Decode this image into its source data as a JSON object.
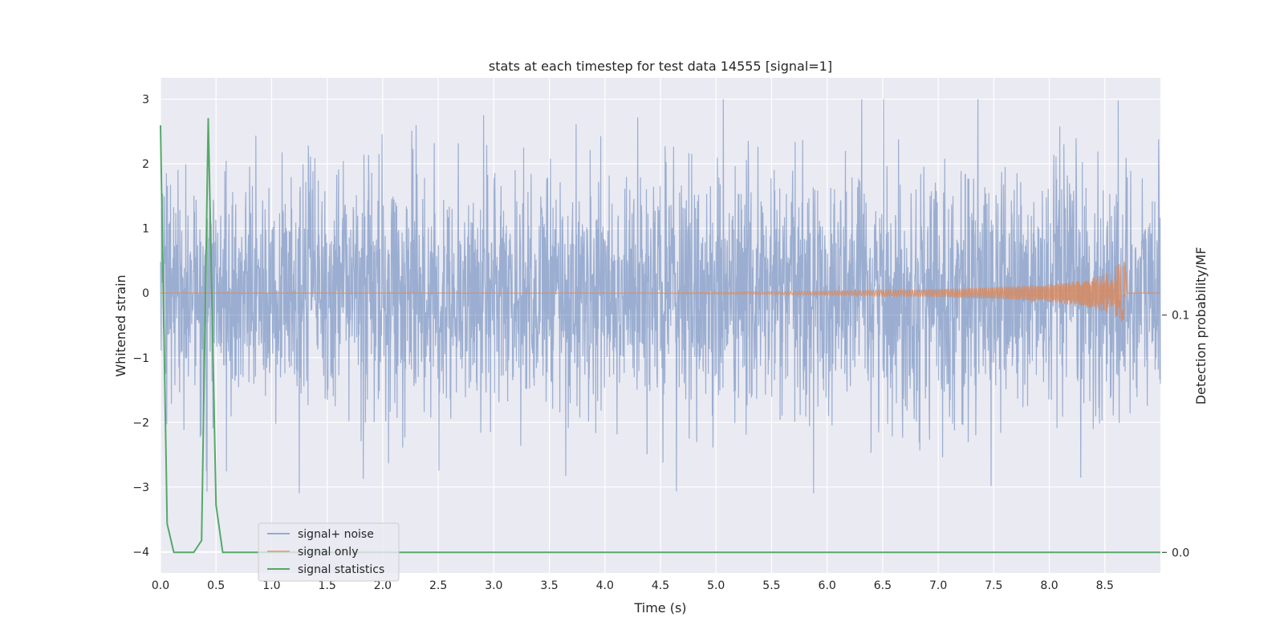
{
  "chart_data": {
    "type": "line",
    "title": "stats at each timestep for test data 14555 [signal=1]",
    "xlabel": "Time (s)",
    "ylabel": "Whitened strain",
    "y2label": "Detection probability/MF",
    "xlim": [
      0,
      9
    ],
    "ylim": [
      -4.33,
      3.33
    ],
    "y2lim": [
      -0.0087,
      0.2
    ],
    "xticks": [
      "0.0",
      "0.5",
      "1.0",
      "1.5",
      "2.0",
      "2.5",
      "3.0",
      "3.5",
      "4.0",
      "4.5",
      "5.0",
      "5.5",
      "6.0",
      "6.5",
      "7.0",
      "7.5",
      "8.0",
      "8.5"
    ],
    "yticks": [
      "3",
      "2",
      "1",
      "0",
      "−1",
      "−2",
      "−3",
      "−4"
    ],
    "y2ticks": [
      "0.1",
      "0.0"
    ],
    "grid": true,
    "legend_position": "lower-left",
    "colors": {
      "signal_noise": "#4c72b0",
      "signal_only": "#dd8452",
      "signal_statistics": "#55a868",
      "background": "#eaeaf2"
    },
    "series": [
      {
        "name": "signal+ noise",
        "axis": "left",
        "description_values": "noise band spanning roughly -3 to 3, dense",
        "x_range": [
          0,
          9
        ],
        "envelope": [
          -3.1,
          3.0
        ]
      },
      {
        "name": "signal only",
        "axis": "left",
        "x": [
          0,
          4.5,
          6.0,
          7.0,
          7.5,
          8.0,
          8.3,
          8.5,
          8.6,
          8.68,
          8.7,
          9.0
        ],
        "amplitude": [
          0.0,
          0.005,
          0.03,
          0.06,
          0.09,
          0.14,
          0.2,
          0.3,
          0.42,
          0.5,
          0.0,
          0.0
        ]
      },
      {
        "name": "signal statistics",
        "axis": "right",
        "x": [
          0.0,
          0.06,
          0.12,
          0.18,
          0.24,
          0.3,
          0.37,
          0.43,
          0.5,
          0.56,
          0.62,
          1.0,
          2.0,
          4.0,
          6.0,
          8.0,
          9.0
        ],
        "values": [
          0.18,
          0.012,
          0.0,
          0.0,
          0.0,
          0.0,
          0.005,
          0.183,
          0.02,
          0.0,
          0.0,
          0.0,
          0.0,
          0.0,
          0.0,
          0.0,
          0.0
        ]
      }
    ]
  }
}
